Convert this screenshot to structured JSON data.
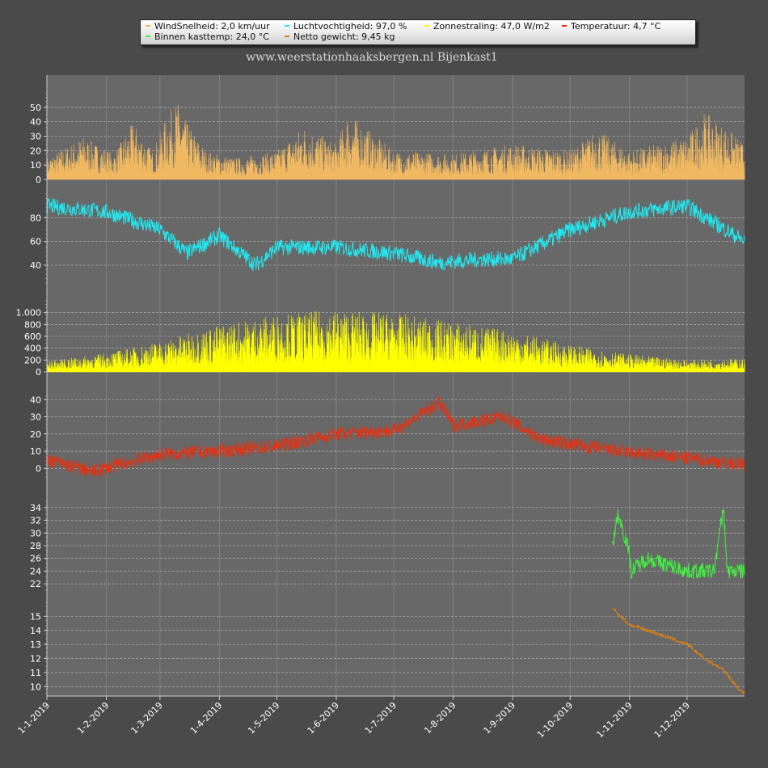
{
  "title": "www.weerstationhaaksbergen.nl Bijenkast1",
  "legend": [
    {
      "label": "WindSnelheid: 2,0 km/uur",
      "color": "#f0b860"
    },
    {
      "label": "Luchtvochtigheid: 97,0 %",
      "color": "#20e8f0"
    },
    {
      "label": "Zonnestraling: 47,0 W/m2",
      "color": "#ffff00"
    },
    {
      "label": "Temperatuur: 4,7 °C",
      "color": "#e83010"
    },
    {
      "label": "Binnen kasttemp: 24,0 °C",
      "color": "#40f040"
    },
    {
      "label": "Netto gewicht: 9,45 kg",
      "color": "#e08010"
    }
  ],
  "chart_data": {
    "type": "line",
    "x_axis": {
      "range": [
        "2019-01-01",
        "2019-12-31"
      ],
      "tick_labels": [
        "1-1-2019",
        "1-2-2019",
        "1-3-2019",
        "1-4-2019",
        "1-5-2019",
        "1-6-2019",
        "1-7-2019",
        "1-8-2019",
        "1-9-2019",
        "1-10-2019",
        "1-11-2019",
        "1-12-2019"
      ],
      "grid": true
    },
    "panels": [
      {
        "series": "WindSnelheid",
        "unit": "km/uur",
        "color": "#f0b860",
        "style": "filled-spikes",
        "ylim": [
          0,
          60
        ],
        "ticks": [
          "0",
          "10",
          "20",
          "30",
          "40",
          "50"
        ],
        "points": [
          [
            "2019-01-01",
            15
          ],
          [
            "2019-01-20",
            30
          ],
          [
            "2019-02-05",
            18
          ],
          [
            "2019-02-15",
            40
          ],
          [
            "2019-02-25",
            20
          ],
          [
            "2019-03-05",
            45
          ],
          [
            "2019-03-10",
            55
          ],
          [
            "2019-03-15",
            40
          ],
          [
            "2019-03-25",
            20
          ],
          [
            "2019-04-10",
            15
          ],
          [
            "2019-05-01",
            20
          ],
          [
            "2019-05-15",
            38
          ],
          [
            "2019-06-01",
            25
          ],
          [
            "2019-06-07",
            47
          ],
          [
            "2019-07-01",
            20
          ],
          [
            "2019-08-01",
            18
          ],
          [
            "2019-09-01",
            25
          ],
          [
            "2019-10-01",
            20
          ],
          [
            "2019-10-15",
            35
          ],
          [
            "2019-11-01",
            20
          ],
          [
            "2019-12-01",
            30
          ],
          [
            "2019-12-10",
            47
          ],
          [
            "2019-12-20",
            38
          ],
          [
            "2019-12-31",
            25
          ]
        ]
      },
      {
        "series": "Luchtvochtigheid",
        "unit": "%",
        "color": "#20e8f0",
        "style": "line",
        "ylim": [
          25,
          100
        ],
        "ticks": [
          "40",
          "60",
          "80"
        ],
        "points": [
          [
            "2019-01-01",
            90
          ],
          [
            "2019-02-01",
            85
          ],
          [
            "2019-03-01",
            70
          ],
          [
            "2019-03-15",
            50
          ],
          [
            "2019-04-01",
            65
          ],
          [
            "2019-04-20",
            40
          ],
          [
            "2019-05-01",
            55
          ],
          [
            "2019-06-01",
            55
          ],
          [
            "2019-07-01",
            50
          ],
          [
            "2019-07-25",
            42
          ],
          [
            "2019-08-15",
            45
          ],
          [
            "2019-09-01",
            45
          ],
          [
            "2019-10-01",
            70
          ],
          [
            "2019-11-01",
            85
          ],
          [
            "2019-12-01",
            90
          ],
          [
            "2019-12-31",
            60
          ]
        ]
      },
      {
        "series": "Zonnestraling",
        "unit": "W/m2",
        "color": "#ffff00",
        "style": "filled-spikes",
        "ylim": [
          0,
          1200
        ],
        "ticks": [
          "0",
          "200",
          "400",
          "600",
          "800",
          "1.000"
        ],
        "points": [
          [
            "2019-01-01",
            180
          ],
          [
            "2019-02-01",
            320
          ],
          [
            "2019-03-01",
            520
          ],
          [
            "2019-04-01",
            800
          ],
          [
            "2019-05-01",
            980
          ],
          [
            "2019-06-01",
            1050
          ],
          [
            "2019-07-01",
            1000
          ],
          [
            "2019-08-01",
            850
          ],
          [
            "2019-09-01",
            700
          ],
          [
            "2019-10-01",
            460
          ],
          [
            "2019-11-01",
            300
          ],
          [
            "2019-12-01",
            200
          ],
          [
            "2019-12-31",
            230
          ]
        ]
      },
      {
        "series": "Temperatuur",
        "unit": "°C",
        "color": "#e83010",
        "style": "line",
        "ylim": [
          -5,
          42
        ],
        "ticks": [
          "0",
          "10",
          "20",
          "30",
          "40"
        ],
        "points": [
          [
            "2019-01-01",
            5
          ],
          [
            "2019-01-25",
            -2
          ],
          [
            "2019-02-10",
            3
          ],
          [
            "2019-03-01",
            8
          ],
          [
            "2019-04-01",
            10
          ],
          [
            "2019-05-01",
            13
          ],
          [
            "2019-06-01",
            20
          ],
          [
            "2019-07-01",
            22
          ],
          [
            "2019-07-25",
            38
          ],
          [
            "2019-08-01",
            25
          ],
          [
            "2019-08-28",
            30
          ],
          [
            "2019-09-15",
            17
          ],
          [
            "2019-10-01",
            14
          ],
          [
            "2019-11-01",
            9
          ],
          [
            "2019-12-01",
            6
          ],
          [
            "2019-12-31",
            2
          ]
        ]
      },
      {
        "series": "Binnen kasttemp",
        "unit": "°C",
        "color": "#40f040",
        "style": "line",
        "ylim": [
          21,
          35
        ],
        "ticks": [
          "22",
          "24",
          "26",
          "28",
          "30",
          "32",
          "34"
        ],
        "points": [
          [
            "2019-10-23",
            28
          ],
          [
            "2019-10-26",
            33
          ],
          [
            "2019-10-31",
            28
          ],
          [
            "2019-11-02",
            24
          ],
          [
            "2019-11-10",
            26
          ],
          [
            "2019-12-01",
            24
          ],
          [
            "2019-12-15",
            24
          ],
          [
            "2019-12-20",
            34
          ],
          [
            "2019-12-22",
            24
          ],
          [
            "2019-12-31",
            24
          ]
        ]
      },
      {
        "series": "Netto gewicht",
        "unit": "kg",
        "color": "#e08010",
        "style": "line",
        "ylim": [
          9.5,
          16
        ],
        "ticks": [
          "10",
          "11",
          "12",
          "13",
          "14",
          "15"
        ],
        "points": [
          [
            "2019-10-23",
            15.6
          ],
          [
            "2019-11-01",
            14.4
          ],
          [
            "2019-11-15",
            13.8
          ],
          [
            "2019-12-01",
            13.0
          ],
          [
            "2019-12-10",
            12.0
          ],
          [
            "2019-12-20",
            11.2
          ],
          [
            "2019-12-27",
            10.0
          ],
          [
            "2019-12-31",
            9.45
          ]
        ]
      }
    ]
  }
}
